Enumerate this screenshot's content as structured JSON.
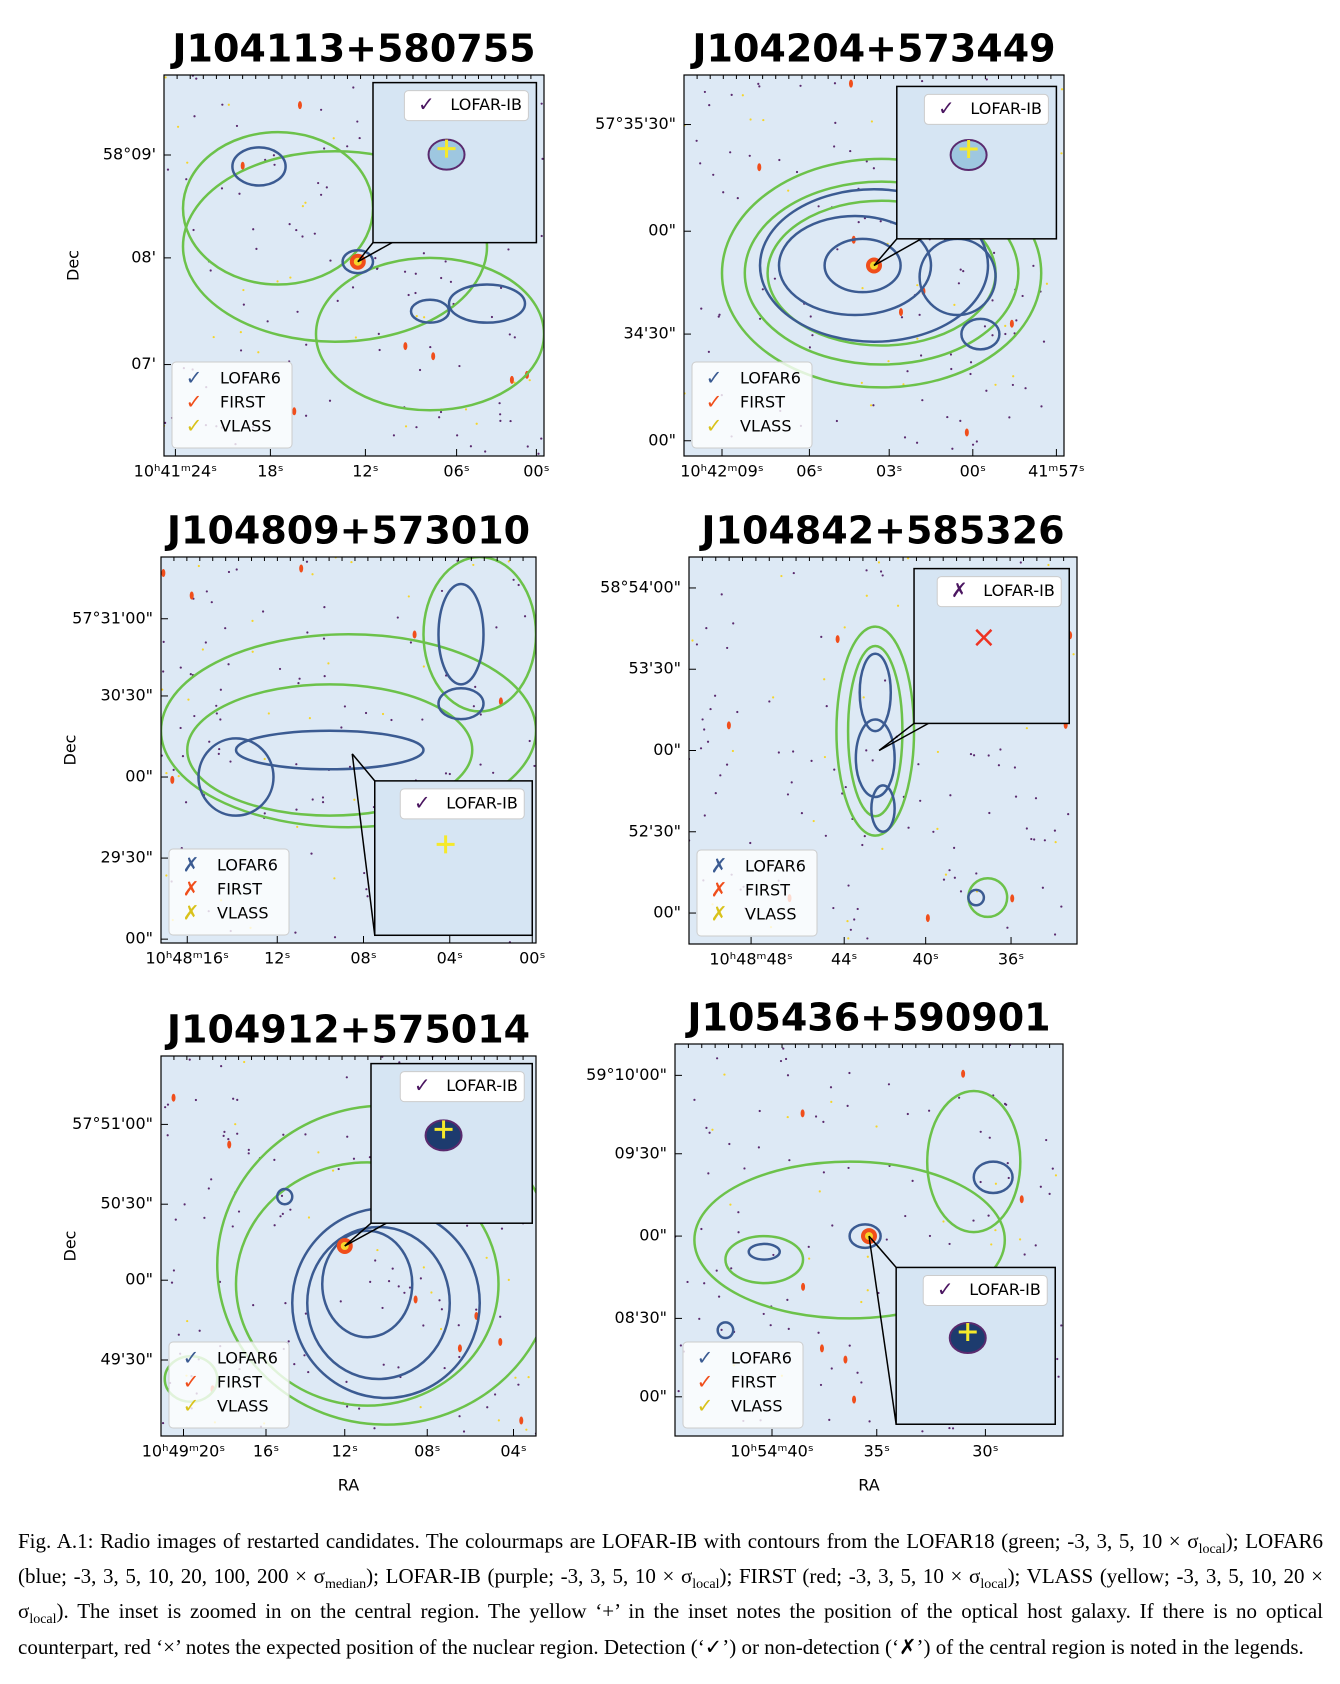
{
  "panels": [
    {
      "title": "J104113+580755",
      "ylabel": "Dec",
      "yticks": [
        "58°09'",
        "08'",
        "07'"
      ],
      "xticks": [
        "10ʰ41ᵐ24ˢ",
        "18ˢ",
        "12ˢ",
        "06ˢ",
        "00ˢ"
      ],
      "legend": [
        {
          "mark": "✓",
          "label": "LOFAR6"
        },
        {
          "mark": "✓",
          "label": "FIRST"
        },
        {
          "mark": "✓",
          "label": "VLASS"
        }
      ],
      "inset_legend": {
        "mark": "✓",
        "label": "LOFAR-IB"
      }
    },
    {
      "title": "J104204+573449",
      "yticks": [
        "57°35'30\"",
        "00\"",
        "34'30\"",
        "00\""
      ],
      "xticks": [
        "10ʰ42ᵐ09ˢ",
        "06ˢ",
        "03ˢ",
        "00ˢ",
        "41ᵐ57ˢ"
      ],
      "legend": [
        {
          "mark": "✓",
          "label": "LOFAR6"
        },
        {
          "mark": "✓",
          "label": "FIRST"
        },
        {
          "mark": "✓",
          "label": "VLASS"
        }
      ],
      "inset_legend": {
        "mark": "✓",
        "label": "LOFAR-IB"
      }
    },
    {
      "title": "J104809+573010",
      "ylabel": "Dec",
      "yticks": [
        "57°31'00\"",
        "30'30\"",
        "00\"",
        "29'30\"",
        "00\""
      ],
      "xticks": [
        "10ʰ48ᵐ16ˢ",
        "12ˢ",
        "08ˢ",
        "04ˢ",
        "00ˢ"
      ],
      "legend": [
        {
          "mark": "✗",
          "label": "LOFAR6"
        },
        {
          "mark": "✗",
          "label": "FIRST"
        },
        {
          "mark": "✗",
          "label": "VLASS"
        }
      ],
      "inset_legend": {
        "mark": "✓",
        "label": "LOFAR-IB"
      }
    },
    {
      "title": "J104842+585326",
      "yticks": [
        "58°54'00\"",
        "53'30\"",
        "00\"",
        "52'30\"",
        "00\""
      ],
      "xticks": [
        "10ʰ48ᵐ48ˢ",
        "44ˢ",
        "40ˢ",
        "36ˢ"
      ],
      "legend": [
        {
          "mark": "✗",
          "label": "LOFAR6"
        },
        {
          "mark": "✗",
          "label": "FIRST"
        },
        {
          "mark": "✗",
          "label": "VLASS"
        }
      ],
      "inset_legend": {
        "mark": "✗",
        "label": "LOFAR-IB"
      }
    },
    {
      "title": "J104912+575014",
      "ylabel": "Dec",
      "xlabel": "RA",
      "yticks": [
        "57°51'00\"",
        "50'30\"",
        "00\"",
        "49'30\""
      ],
      "xticks": [
        "10ʰ49ᵐ20ˢ",
        "16ˢ",
        "12ˢ",
        "08ˢ",
        "04ˢ"
      ],
      "legend": [
        {
          "mark": "✓",
          "label": "LOFAR6"
        },
        {
          "mark": "✓",
          "label": "FIRST"
        },
        {
          "mark": "✓",
          "label": "VLASS"
        }
      ],
      "inset_legend": {
        "mark": "✓",
        "label": "LOFAR-IB"
      }
    },
    {
      "title": "J105436+590901",
      "xlabel": "RA",
      "yticks": [
        "59°10'00\"",
        "09'30\"",
        "00\"",
        "08'30\"",
        "00\""
      ],
      "xticks": [
        "10ʰ54ᵐ40ˢ",
        "35ˢ",
        "30ˢ"
      ],
      "legend": [
        {
          "mark": "✓",
          "label": "LOFAR6"
        },
        {
          "mark": "✓",
          "label": "FIRST"
        },
        {
          "mark": "✓",
          "label": "VLASS"
        }
      ],
      "inset_legend": {
        "mark": "✓",
        "label": "LOFAR-IB"
      }
    }
  ],
  "caption": [
    "Fig. A.1: Radio images of restarted candidates. The colourmaps are LOFAR-IB with contours from the LOFAR18 (green; -3, 3, 5, 10 × σ",
    "local",
    "); LOFAR6 (blue; -3, 3, 5, 10, 20, 100, 200 × σ",
    "median",
    "); LOFAR-IB (purple; -3, 3, 5, 10 × σ",
    "local",
    "); FIRST (red; -3, 3, 5, 10 × σ",
    "local",
    "); VLASS (yellow; -3, 3, 5, 10, 20 × σ",
    "local",
    "). The inset is zoomed in on the central region. The yellow ‘+’ in the inset notes the position of the optical host galaxy. If there is no optical counterpart, red ‘×’ notes the expected position of the nuclear region. Detection (‘✓’) or non-detection (‘✗’) of the central region is noted in the legends."
  ]
}
